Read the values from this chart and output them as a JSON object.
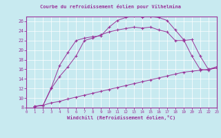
{
  "title": "Courbe du refroidissement éolien pour Vilhelmina",
  "xlabel": "Windchill (Refroidissement éolien,°C)",
  "xlim": [
    0,
    23
  ],
  "ylim": [
    8,
    27
  ],
  "yticks": [
    8,
    10,
    12,
    14,
    16,
    18,
    20,
    22,
    24,
    26
  ],
  "xticks": [
    0,
    1,
    2,
    3,
    4,
    5,
    6,
    7,
    8,
    9,
    10,
    11,
    12,
    13,
    14,
    15,
    16,
    17,
    18,
    19,
    20,
    21,
    22,
    23
  ],
  "bg_color": "#c8eaf0",
  "line_color": "#993399",
  "line1_x": [
    1,
    2,
    3,
    4,
    5,
    6,
    7,
    8,
    9,
    10,
    11,
    12,
    13,
    14,
    15,
    16,
    17,
    18,
    19,
    20,
    21,
    22,
    23
  ],
  "line1_y": [
    8.2,
    8.5,
    9.0,
    9.3,
    9.8,
    10.2,
    10.6,
    11.0,
    11.4,
    11.8,
    12.2,
    12.6,
    13.0,
    13.4,
    13.8,
    14.2,
    14.6,
    15.0,
    15.4,
    15.6,
    15.8,
    16.0,
    16.2
  ],
  "line2_x": [
    1,
    2,
    3,
    4,
    5,
    6,
    7,
    8,
    9,
    10,
    11,
    12,
    13,
    14,
    15,
    16,
    17,
    18,
    19,
    20,
    21,
    22,
    23
  ],
  "line2_y": [
    8.3,
    8.5,
    12.2,
    16.8,
    19.5,
    22.0,
    22.5,
    22.8,
    23.0,
    24.8,
    26.2,
    26.8,
    27.1,
    26.9,
    27.0,
    26.8,
    26.2,
    24.2,
    22.2,
    18.8,
    16.0,
    15.8,
    16.5
  ],
  "line3_x": [
    1,
    2,
    3,
    4,
    5,
    6,
    7,
    8,
    9,
    10,
    11,
    12,
    13,
    14,
    15,
    16,
    17,
    18,
    19,
    20,
    21,
    22,
    23
  ],
  "line3_y": [
    8.3,
    8.5,
    12.0,
    14.5,
    16.5,
    18.8,
    22.0,
    22.5,
    23.2,
    23.8,
    24.2,
    24.5,
    24.8,
    24.6,
    24.8,
    24.2,
    23.8,
    22.0,
    22.0,
    22.2,
    18.8,
    16.0,
    16.5
  ]
}
